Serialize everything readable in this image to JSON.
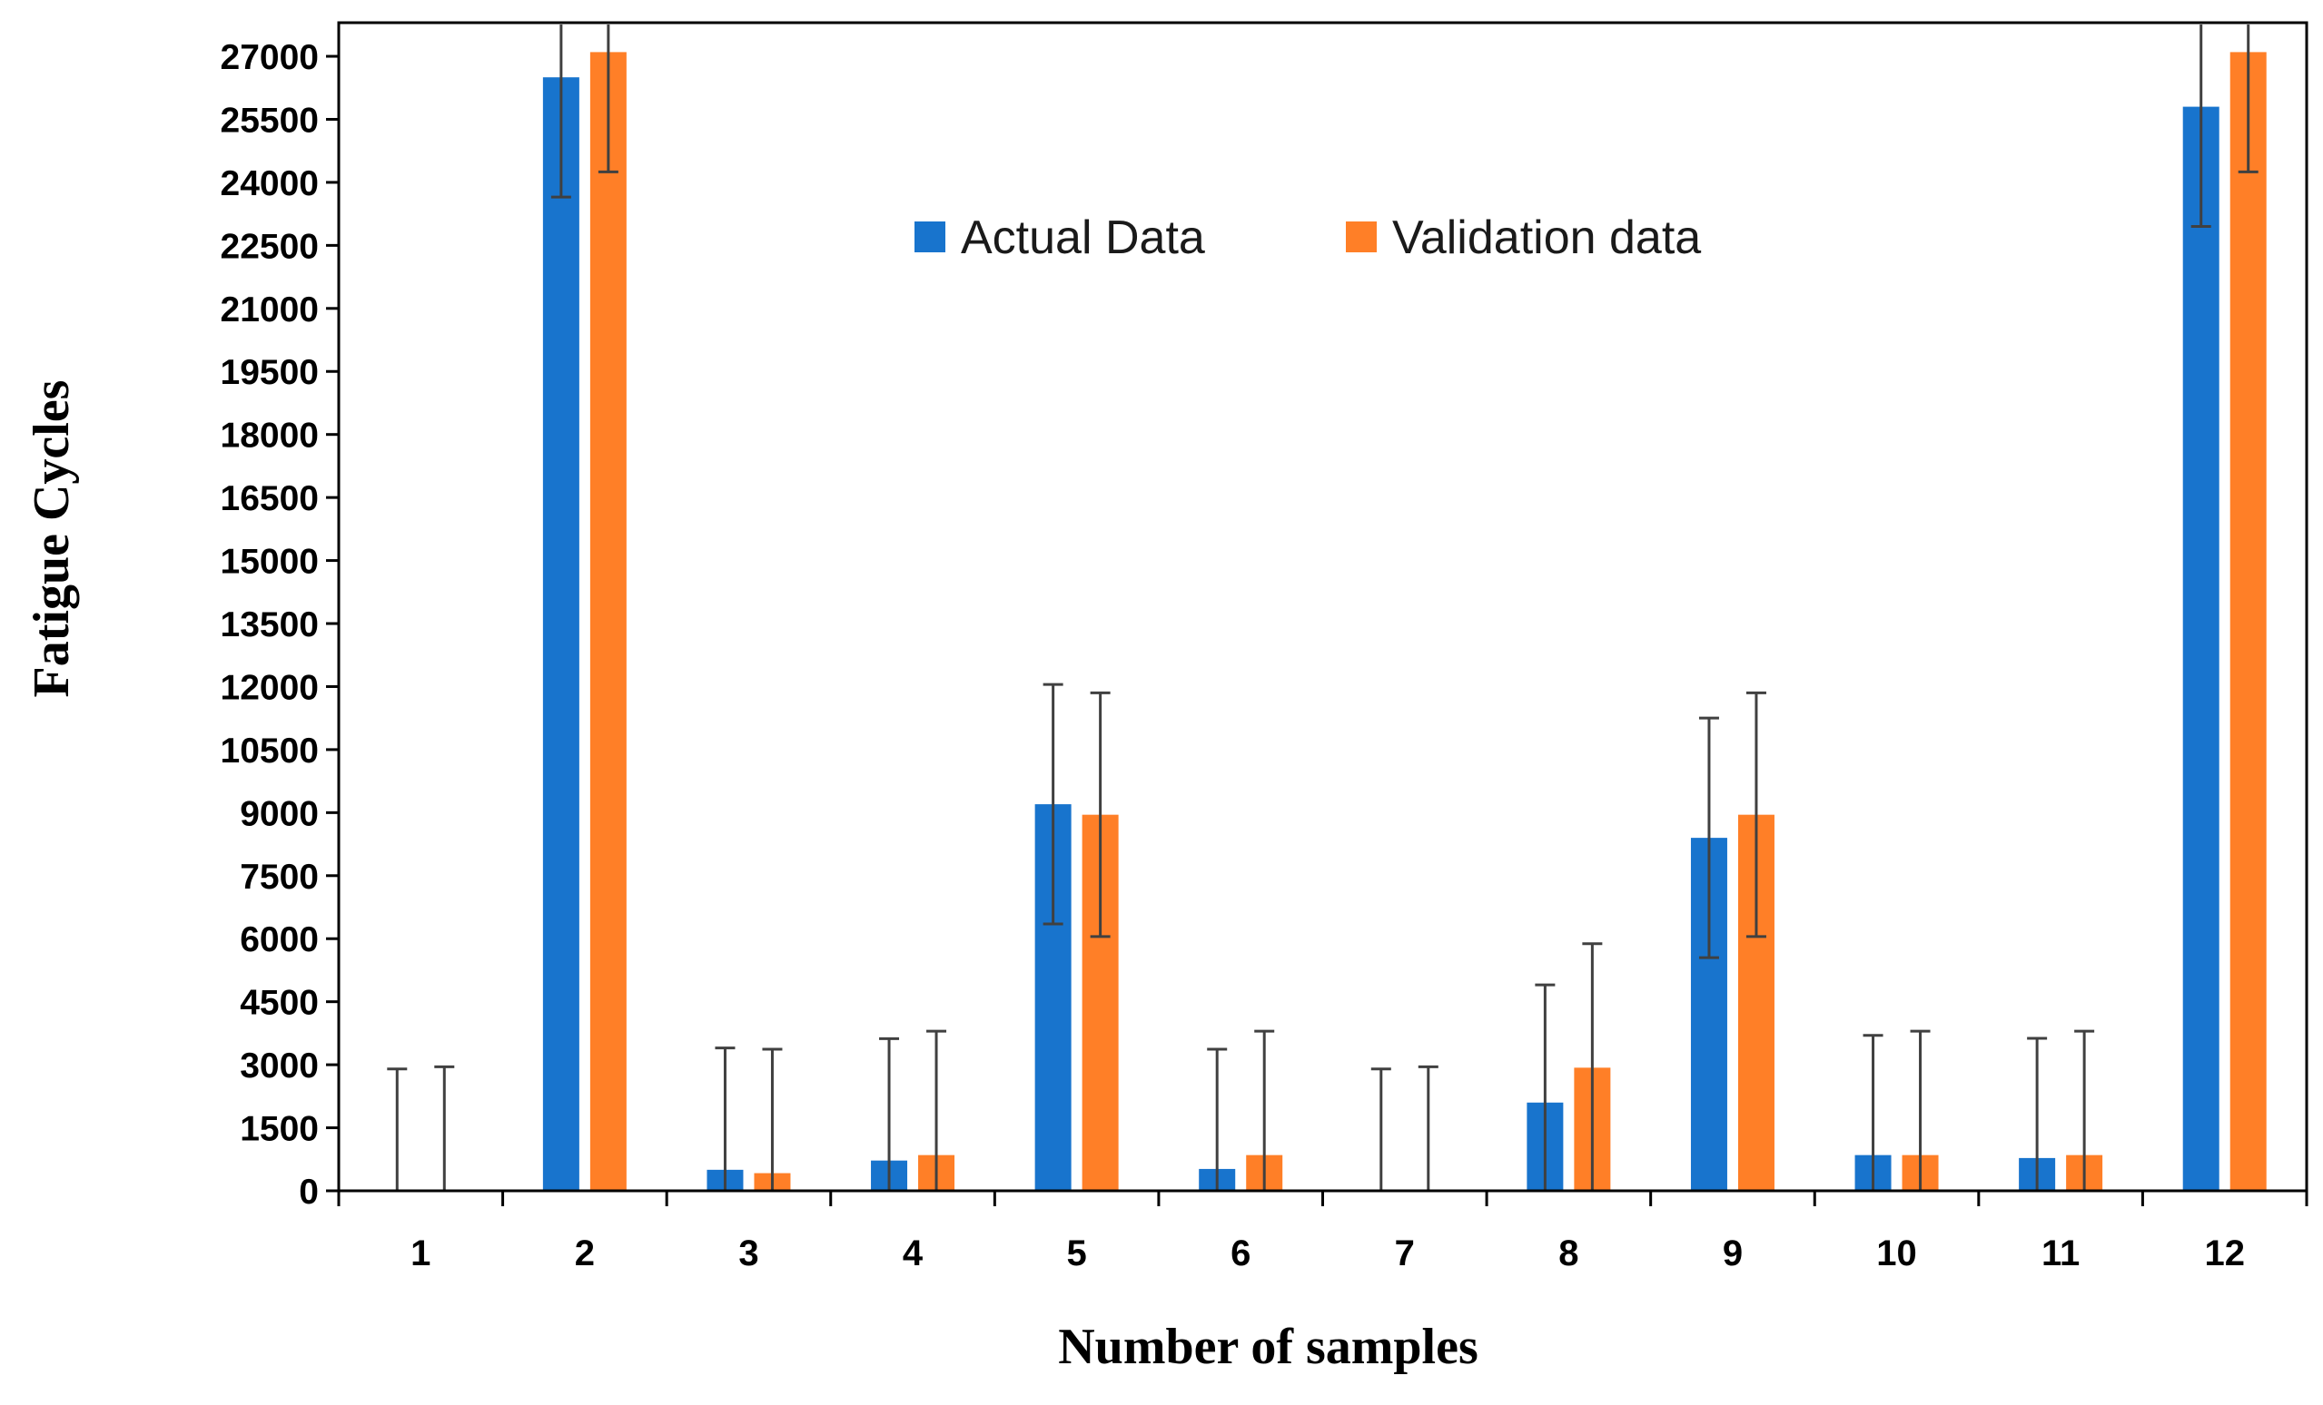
{
  "chart_data": {
    "type": "bar",
    "title": "",
    "xlabel": "Number of samples",
    "ylabel": "Fatigue Cycles",
    "categories": [
      "1",
      "2",
      "3",
      "4",
      "5",
      "6",
      "7",
      "8",
      "9",
      "10",
      "11",
      "12"
    ],
    "series": [
      {
        "name": "Actual Data",
        "color": "#1874cd",
        "values": [
          0,
          26500,
          500,
          720,
          9200,
          520,
          0,
          2100,
          8400,
          850,
          780,
          25800
        ],
        "error": [
          2900,
          2850,
          2900,
          2900,
          2850,
          2850,
          2900,
          2800,
          2850,
          2850,
          2850,
          2850
        ]
      },
      {
        "name": "Validation data",
        "color": "#ff7f27",
        "values": [
          0,
          27100,
          420,
          850,
          8950,
          850,
          0,
          2930,
          8950,
          850,
          850,
          27100
        ],
        "error": [
          2950,
          2850,
          2950,
          2950,
          2900,
          2950,
          2950,
          2950,
          2900,
          2950,
          2950,
          2850
        ]
      }
    ],
    "ylim": [
      0,
      27800
    ],
    "yticks": [
      "0",
      "1500",
      "3000",
      "4500",
      "6000",
      "7500",
      "9000",
      "10500",
      "12000",
      "13500",
      "15000",
      "16500",
      "18000",
      "19500",
      "21000",
      "22500",
      "24000",
      "25500",
      "27000"
    ],
    "grid": false,
    "legend_position": "top-center"
  }
}
